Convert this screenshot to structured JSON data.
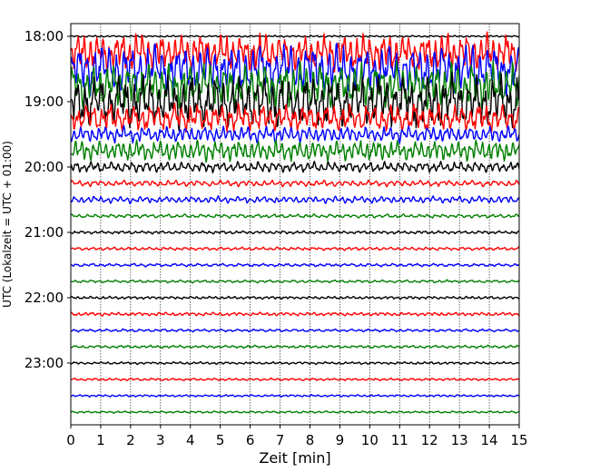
{
  "chart_data": {
    "type": "line",
    "title": "",
    "xlabel": "Zeit  [min]",
    "ylabel": "UTC (Lokalzeit = UTC + 01:00)",
    "xlim": [
      0,
      15
    ],
    "x_ticks": [
      "0",
      "1",
      "2",
      "3",
      "4",
      "5",
      "6",
      "7",
      "8",
      "9",
      "10",
      "11",
      "12",
      "13",
      "14",
      "15"
    ],
    "y_tick_labels": [
      "18:00",
      "19:00",
      "20:00",
      "21:00",
      "22:00",
      "23:00"
    ],
    "y_tick_rows": [
      0,
      4,
      8,
      12,
      16,
      20
    ],
    "grid_x": true,
    "grid_y": false,
    "minutes_per_trace": 15,
    "trace_colors": [
      "#000000",
      "#ff0000",
      "#0000ff",
      "#008000"
    ],
    "traces": [
      {
        "start": "18:00",
        "amplitude": 0.1
      },
      {
        "start": "18:15",
        "amplitude": 2.2
      },
      {
        "start": "18:30",
        "amplitude": 2.8
      },
      {
        "start": "18:45",
        "amplitude": 2.6
      },
      {
        "start": "19:00",
        "amplitude": 3.0
      },
      {
        "start": "19:15",
        "amplitude": 1.6
      },
      {
        "start": "19:30",
        "amplitude": 0.9
      },
      {
        "start": "19:45",
        "amplitude": 1.2
      },
      {
        "start": "20:00",
        "amplitude": 0.6
      },
      {
        "start": "20:15",
        "amplitude": 0.35
      },
      {
        "start": "20:30",
        "amplitude": 0.4
      },
      {
        "start": "20:45",
        "amplitude": 0.22
      },
      {
        "start": "21:00",
        "amplitude": 0.18
      },
      {
        "start": "21:15",
        "amplitude": 0.18
      },
      {
        "start": "21:30",
        "amplitude": 0.18
      },
      {
        "start": "21:45",
        "amplitude": 0.16
      },
      {
        "start": "22:00",
        "amplitude": 0.16
      },
      {
        "start": "22:15",
        "amplitude": 0.2
      },
      {
        "start": "22:30",
        "amplitude": 0.16
      },
      {
        "start": "22:45",
        "amplitude": 0.16
      },
      {
        "start": "23:00",
        "amplitude": 0.14
      },
      {
        "start": "23:15",
        "amplitude": 0.14
      },
      {
        "start": "23:30",
        "amplitude": 0.12
      },
      {
        "start": "23:45",
        "amplitude": 0.12
      }
    ]
  }
}
